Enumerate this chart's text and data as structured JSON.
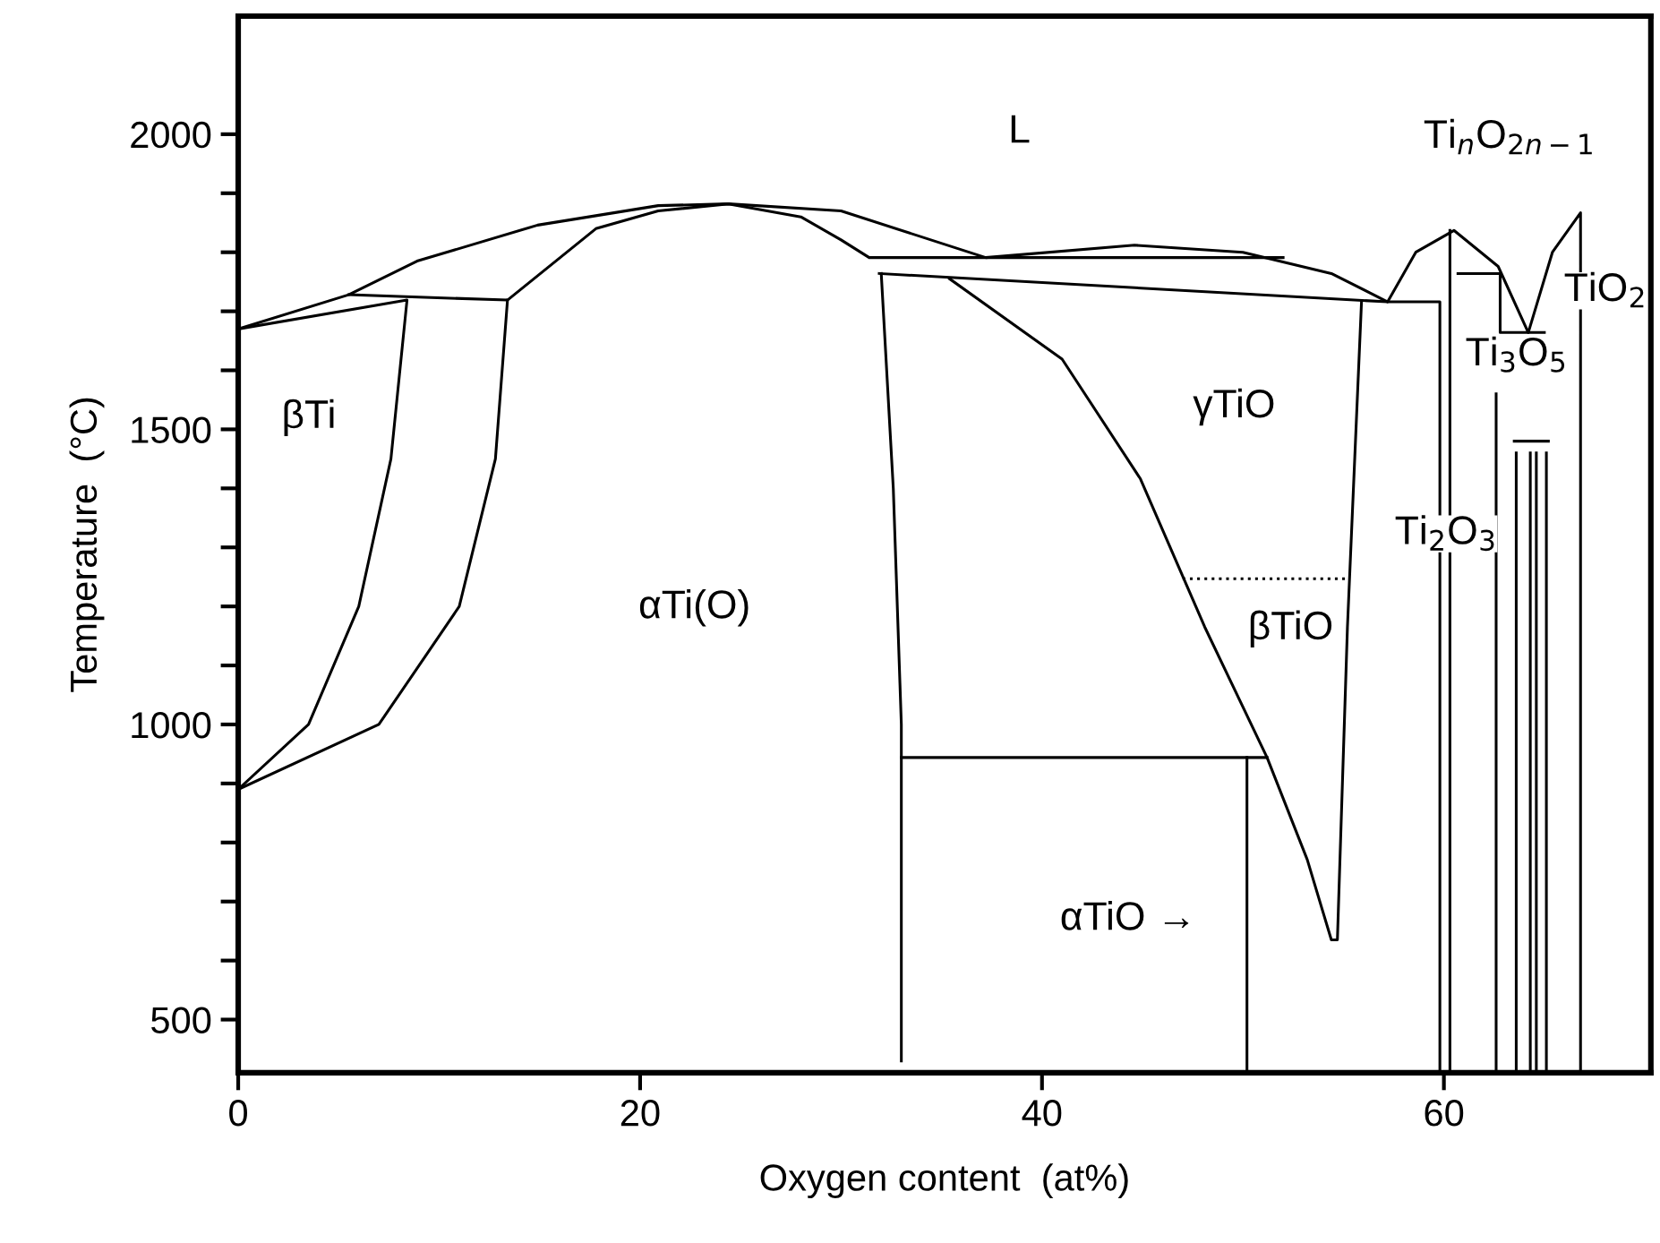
{
  "chart_data": {
    "type": "line",
    "xlabel": "Oxygen content  (at%)",
    "ylabel": "Temperature  (°C)",
    "xlim": [
      0,
      70.3
    ],
    "ylim": [
      410,
      2200
    ],
    "xticks": [
      0,
      20,
      40,
      60
    ],
    "yticks": [
      500,
      {
        "value": 600,
        "label": null
      },
      {
        "value": 700,
        "label": null
      },
      {
        "value": 800,
        "label": null
      },
      {
        "value": 900,
        "label": null
      },
      1000,
      {
        "value": 1100,
        "label": null
      },
      {
        "value": 1200,
        "label": null
      },
      {
        "value": 1300,
        "label": null
      },
      {
        "value": 1400,
        "label": null
      },
      1500,
      {
        "value": 1600,
        "label": null
      },
      {
        "value": 1700,
        "label": null
      },
      {
        "value": 1800,
        "label": null
      },
      {
        "value": 1900,
        "label": null
      },
      2000
    ],
    "grid": false,
    "legend": false,
    "marker": "none",
    "series": [
      {
        "color": "#000000",
        "x": [
          0,
          5.5,
          8.9,
          14.9,
          20.9,
          24.4,
          30.0,
          37.2,
          44.6,
          50.0,
          54.4,
          57.2,
          58.6,
          60.5,
          62.7,
          64.2,
          65.4,
          66.8,
          66.8
        ],
        "values": [
          1670,
          1728,
          1785,
          1846,
          1879,
          1882,
          1870,
          1791,
          1812,
          1800,
          1764,
          1716,
          1800,
          1837,
          1776,
          1664,
          1800,
          1867,
          410
        ]
      },
      {
        "color": "#000000",
        "x": [
          0,
          3.5,
          6.0,
          7.6,
          8.4,
          0
        ],
        "values": [
          890,
          1000,
          1200,
          1450,
          1719,
          1670
        ]
      },
      {
        "color": "#000000",
        "x": [
          5.5,
          13.4,
          17.8,
          20.9,
          24.4,
          28.0,
          30.0,
          31.4,
          52.0
        ],
        "values": [
          1728,
          1719,
          1840,
          1870,
          1882,
          1860,
          1821,
          1791,
          1791
        ]
      },
      {
        "color": "#000000",
        "x": [
          0,
          7.0,
          11.0,
          12.8,
          13.4
        ],
        "values": [
          890,
          1000,
          1200,
          1450,
          1719
        ]
      },
      {
        "color": "#000000",
        "x": [
          31.9,
          57.2,
          59.8,
          59.8
        ],
        "values": [
          1764,
          1716,
          1716,
          410
        ]
      },
      {
        "color": "#000000",
        "x": [
          32.0,
          32.6,
          33.0,
          33.0
        ],
        "values": [
          1764,
          1400,
          1000,
          430
        ]
      },
      {
        "color": "#000000",
        "x": [
          35.4,
          41.0,
          44.9,
          48.1,
          51.2,
          53.2,
          54.4,
          54.7,
          55.2,
          55.9
        ],
        "values": [
          1755,
          1619,
          1416,
          1165,
          944,
          771,
          635,
          635,
          1165,
          1716
        ]
      },
      {
        "color": "#000000",
        "x": [
          47.0,
          55.2
        ],
        "values": [
          1247,
          1247
        ],
        "line_style": "dotted"
      },
      {
        "color": "#000000",
        "x": [
          33.0,
          51.2
        ],
        "values": [
          944,
          944
        ]
      },
      {
        "color": "#000000",
        "x": [
          50.2,
          50.2
        ],
        "values": [
          944,
          410
        ]
      },
      {
        "color": "#000000",
        "x": [
          60.3,
          60.3
        ],
        "values": [
          1837,
          410
        ]
      },
      {
        "color": "#000000",
        "x": [
          60.7,
          62.8,
          62.8,
          65.0
        ],
        "values": [
          1764,
          1764,
          1664,
          1664
        ]
      },
      {
        "color": "#000000",
        "x": [
          62.6,
          62.6
        ],
        "values": [
          1560,
          410
        ]
      },
      {
        "color": "#000000",
        "x": [
          63.5,
          65.2
        ],
        "values": [
          1480,
          1480
        ]
      },
      {
        "color": "#000000",
        "x": [
          63.6,
          63.6
        ],
        "values": [
          1460,
          410
        ]
      },
      {
        "color": "#000000",
        "x": [
          64.3,
          64.3
        ],
        "values": [
          1460,
          410
        ]
      },
      {
        "color": "#000000",
        "x": [
          64.6,
          64.6
        ],
        "values": [
          1460,
          410
        ]
      },
      {
        "color": "#000000",
        "x": [
          65.1,
          65.1
        ],
        "values": [
          1460,
          410
        ]
      }
    ],
    "annotations": [
      "L",
      "Ti$_{n}$O$_{2n−1}$",
      "TiO$_{2}$",
      "Ti$_{3}$O$_{5}$",
      "Ti$_{2}$O$_{3}$",
      "βTi",
      "αTi(O)",
      "γTiO",
      "βTiO",
      "αTiO →"
    ]
  }
}
